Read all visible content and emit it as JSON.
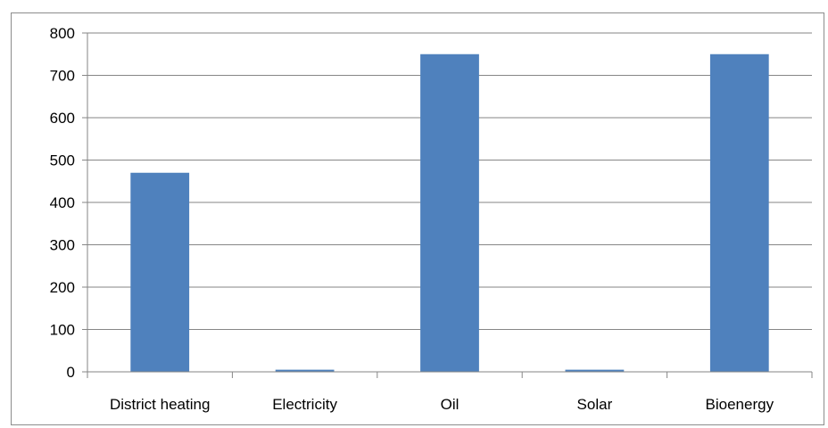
{
  "chart_data": {
    "type": "bar",
    "title": "",
    "xlabel": "",
    "ylabel": "",
    "categories": [
      "District heating",
      "Electricity",
      "Oil",
      "Solar",
      "Bioenergy"
    ],
    "values": [
      470,
      5,
      750,
      5,
      750
    ],
    "ylim": [
      0,
      800
    ],
    "yticks": [
      "0",
      "100",
      "200",
      "300",
      "400",
      "500",
      "600",
      "700",
      "800"
    ],
    "grid": true,
    "legend": "none",
    "colors": {
      "bar": "#4F81BD",
      "grid": "#868686",
      "axis": "#868686",
      "frame": "#8C8C8C"
    }
  }
}
